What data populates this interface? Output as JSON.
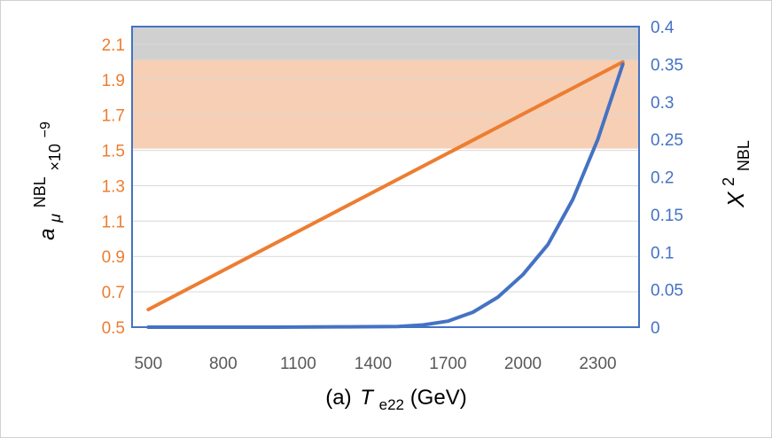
{
  "chart_data": {
    "type": "line",
    "title": "",
    "xlabel": {
      "prefix": "(a)",
      "symbol": "T",
      "subscript": "e22",
      "unit": "(GeV)"
    },
    "ylabel_left": {
      "symbol": "a",
      "subscript": "μ",
      "superscript": "NBL",
      "suffix": "×10",
      "exponent": "−9"
    },
    "ylabel_right": {
      "symbol": "X",
      "superscript": "2",
      "subscript": "NBL"
    },
    "xlim": [
      435,
      2465
    ],
    "ylim_left": [
      0.5,
      2.2
    ],
    "ylim_right": [
      0,
      0.4
    ],
    "x_ticks": [
      "500",
      "800",
      "1100",
      "1400",
      "1700",
      "2000",
      "2300"
    ],
    "x_tick_values": [
      500,
      800,
      1100,
      1400,
      1700,
      2000,
      2300
    ],
    "y_left_ticks": [
      "0.5",
      "0.7",
      "0.9",
      "1.1",
      "1.3",
      "1.5",
      "1.7",
      "1.9",
      "2.1"
    ],
    "y_left_tick_values": [
      0.5,
      0.7,
      0.9,
      1.1,
      1.3,
      1.5,
      1.7,
      1.9,
      2.1
    ],
    "y_right_ticks": [
      "0",
      "0.05",
      "0.1",
      "0.15",
      "0.2",
      "0.25",
      "0.3",
      "0.35",
      "0.4"
    ],
    "y_right_tick_values": [
      0,
      0.05,
      0.1,
      0.15,
      0.2,
      0.25,
      0.3,
      0.35,
      0.4
    ],
    "grid": "horizontal",
    "bands": [
      {
        "color": "#d0d0d0",
        "y_from": 2.01,
        "y_to": 2.2,
        "axis": "left"
      },
      {
        "color": "#f7cfb4",
        "y_from": 1.51,
        "y_to": 2.01,
        "axis": "left"
      }
    ],
    "series": [
      {
        "color": "#ed7d31",
        "axis": "left",
        "x": [
          500,
          2400
        ],
        "y": [
          0.6,
          2.0
        ]
      },
      {
        "color": "#4472c4",
        "axis": "right",
        "x": [
          500,
          1000,
          1300,
          1500,
          1600,
          1700,
          1800,
          1900,
          2000,
          2100,
          2200,
          2300,
          2400
        ],
        "y": [
          0,
          0,
          0.0005,
          0.001,
          0.003,
          0.008,
          0.02,
          0.04,
          0.07,
          0.11,
          0.17,
          0.25,
          0.35
        ]
      }
    ]
  }
}
